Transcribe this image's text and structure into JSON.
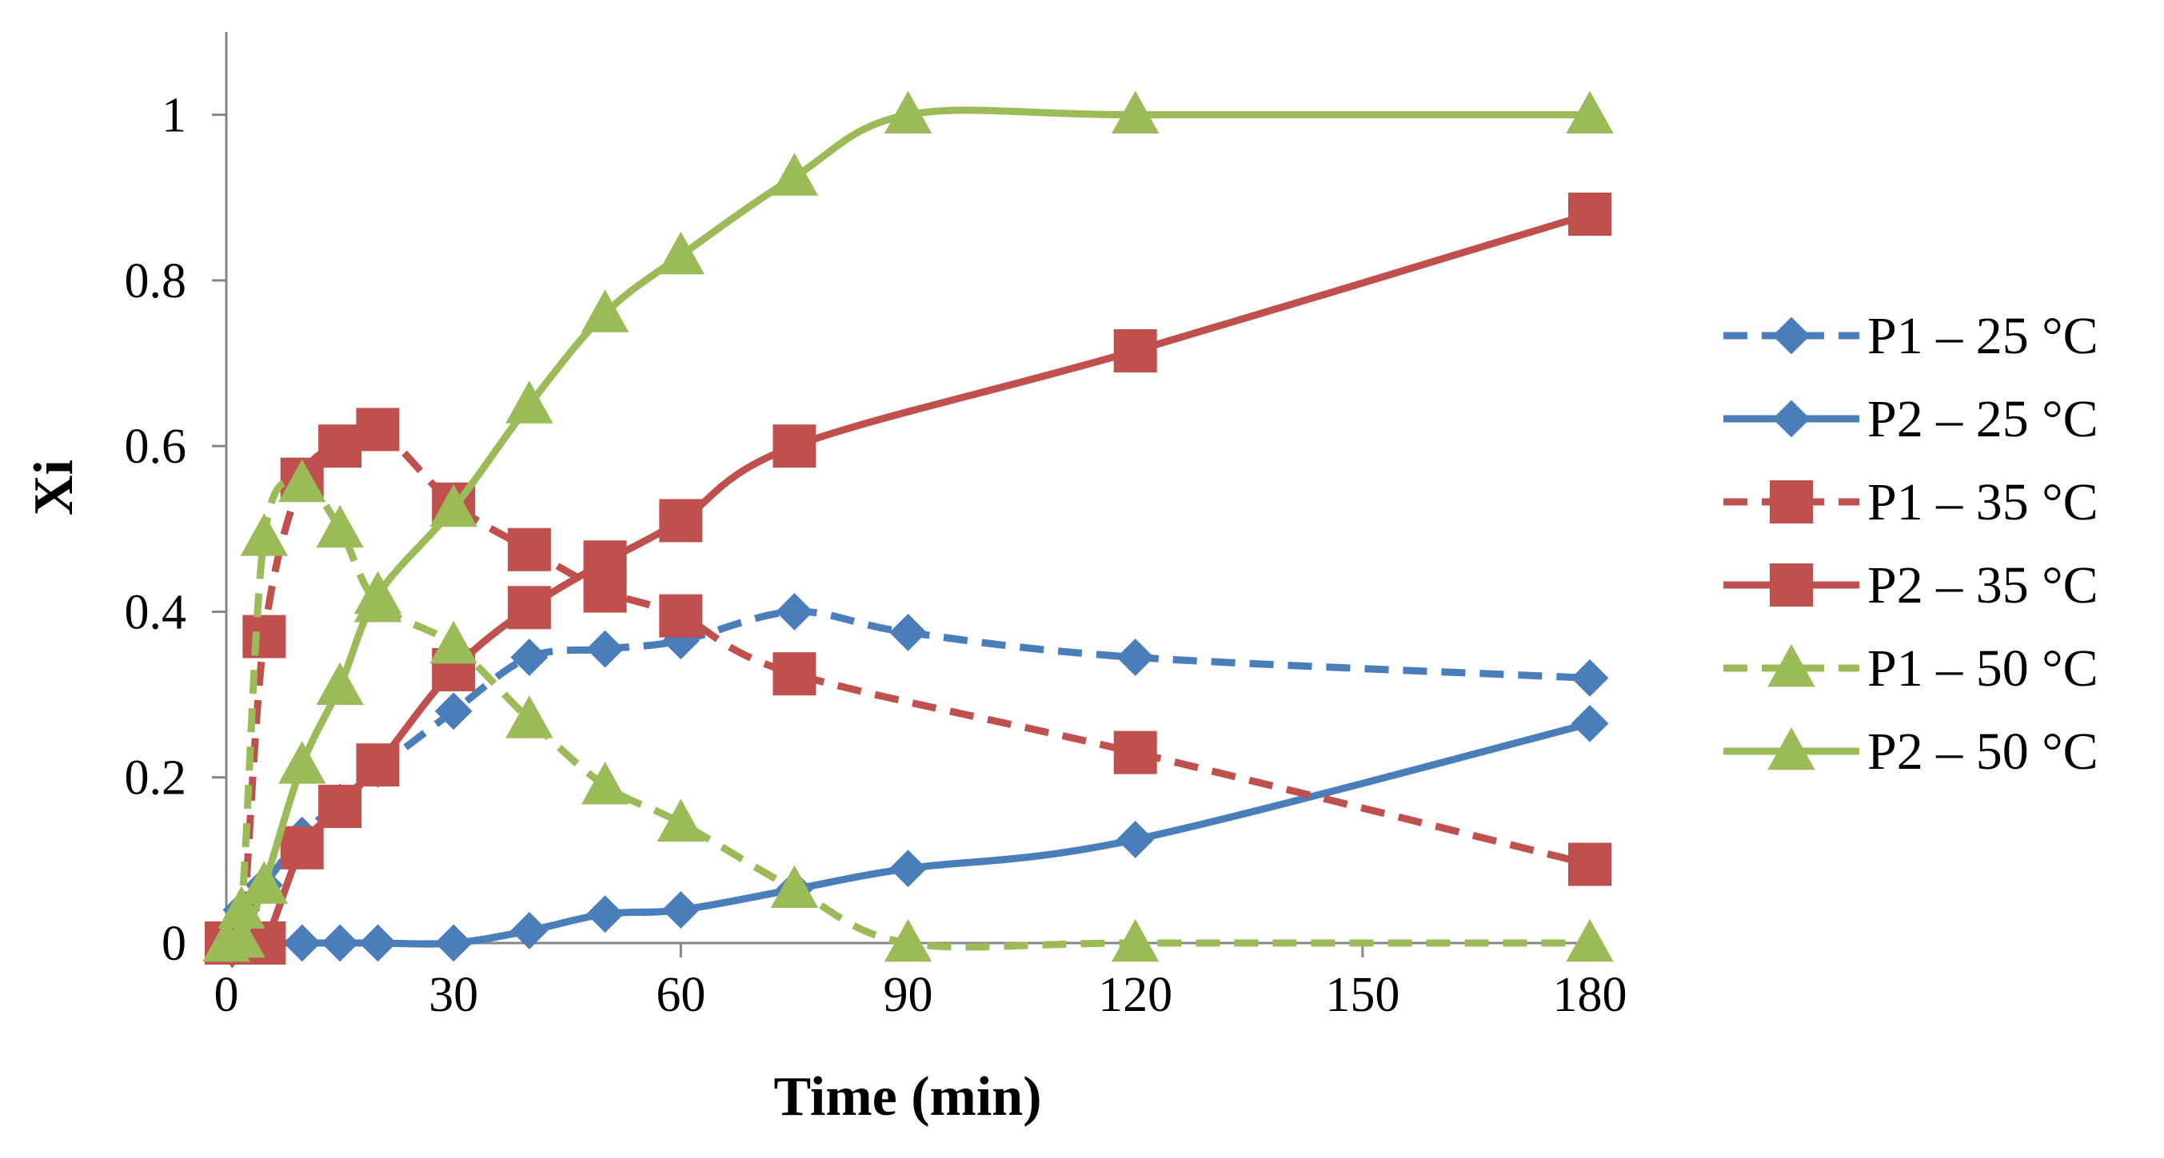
{
  "chart_data": {
    "type": "line",
    "title": "",
    "xlabel": "Time (min)",
    "ylabel": "Xi",
    "xlim": [
      0,
      180
    ],
    "ylim": [
      0,
      1.1
    ],
    "xticks": [
      0,
      30,
      60,
      90,
      120,
      150,
      180
    ],
    "xtick_labels": [
      "0",
      "30",
      "60",
      "90",
      "120",
      "150",
      "180"
    ],
    "yticks": [
      0,
      0.2,
      0.4,
      0.6,
      0.8,
      1
    ],
    "ytick_labels": [
      "0",
      "0.2",
      "0.4",
      "0.6",
      "0.8",
      "1"
    ],
    "grid": false,
    "legend_position": "right",
    "series": [
      {
        "name": "P1 – 25 °C",
        "color": "#4a7ebb",
        "dash": "dashed",
        "marker": "diamond",
        "x": [
          0,
          2,
          5,
          10,
          15,
          20,
          30,
          40,
          50,
          60,
          75,
          90,
          120,
          180
        ],
        "values": [
          0,
          0.04,
          0.07,
          0.13,
          0.17,
          0.21,
          0.28,
          0.345,
          0.355,
          0.365,
          0.4,
          0.375,
          0.345,
          0.32
        ]
      },
      {
        "name": "P2 – 25 °C",
        "color": "#4a7ebb",
        "dash": "solid",
        "marker": "diamond",
        "x": [
          0,
          2,
          5,
          10,
          15,
          20,
          30,
          40,
          50,
          60,
          75,
          90,
          120,
          180
        ],
        "values": [
          0,
          0,
          0,
          0,
          0,
          0,
          0,
          0.015,
          0.035,
          0.04,
          0.065,
          0.09,
          0.125,
          0.265
        ]
      },
      {
        "name": "P1 – 35 °C",
        "color": "#c0504d",
        "dash": "dashed",
        "marker": "square",
        "x": [
          0,
          2,
          5,
          10,
          15,
          20,
          30,
          40,
          50,
          60,
          75,
          120,
          180
        ],
        "values": [
          0,
          0,
          0.37,
          0.56,
          0.6,
          0.62,
          0.53,
          0.475,
          0.425,
          0.395,
          0.325,
          0.23,
          0.095
        ]
      },
      {
        "name": "P2 – 35 °C",
        "color": "#c0504d",
        "dash": "solid",
        "marker": "square",
        "x": [
          0,
          2,
          5,
          10,
          15,
          20,
          30,
          40,
          50,
          60,
          75,
          120,
          180
        ],
        "values": [
          0,
          0,
          0,
          0.115,
          0.165,
          0.215,
          0.33,
          0.405,
          0.46,
          0.51,
          0.6,
          0.715,
          0.88
        ]
      },
      {
        "name": "P1 – 50 °C",
        "color": "#9bbb59",
        "dash": "dashed",
        "marker": "triangle",
        "x": [
          0,
          2,
          5,
          10,
          15,
          20,
          30,
          40,
          50,
          60,
          75,
          90,
          120,
          180
        ],
        "values": [
          0,
          0.04,
          0.49,
          0.555,
          0.5,
          0.41,
          0.36,
          0.27,
          0.19,
          0.145,
          0.065,
          0,
          0,
          0
        ]
      },
      {
        "name": "P2 – 50 °C",
        "color": "#9bbb59",
        "dash": "solid",
        "marker": "triangle",
        "x": [
          0,
          2,
          5,
          10,
          15,
          20,
          30,
          40,
          50,
          60,
          75,
          90,
          120,
          180
        ],
        "values": [
          0,
          0.005,
          0.07,
          0.215,
          0.31,
          0.42,
          0.525,
          0.65,
          0.76,
          0.83,
          0.925,
          1.0,
          1.0,
          1.0
        ]
      }
    ]
  }
}
